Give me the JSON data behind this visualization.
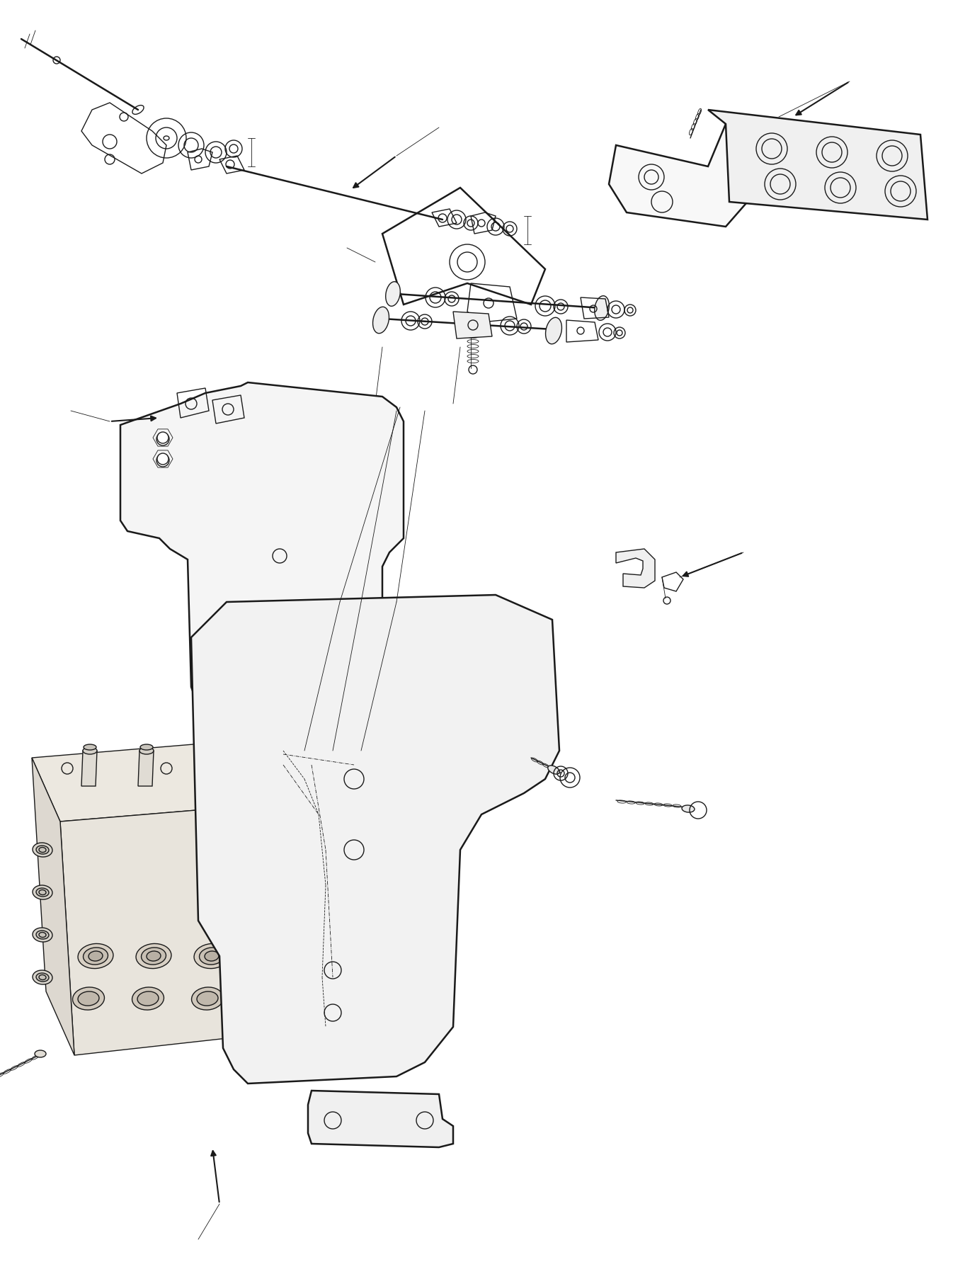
{
  "bg_color": "#ffffff",
  "lc": "#1a1a1a",
  "lw": 1.0,
  "tlw": 0.6,
  "thw": 1.8,
  "fig_width": 13.46,
  "fig_height": 17.82,
  "dpi": 100
}
